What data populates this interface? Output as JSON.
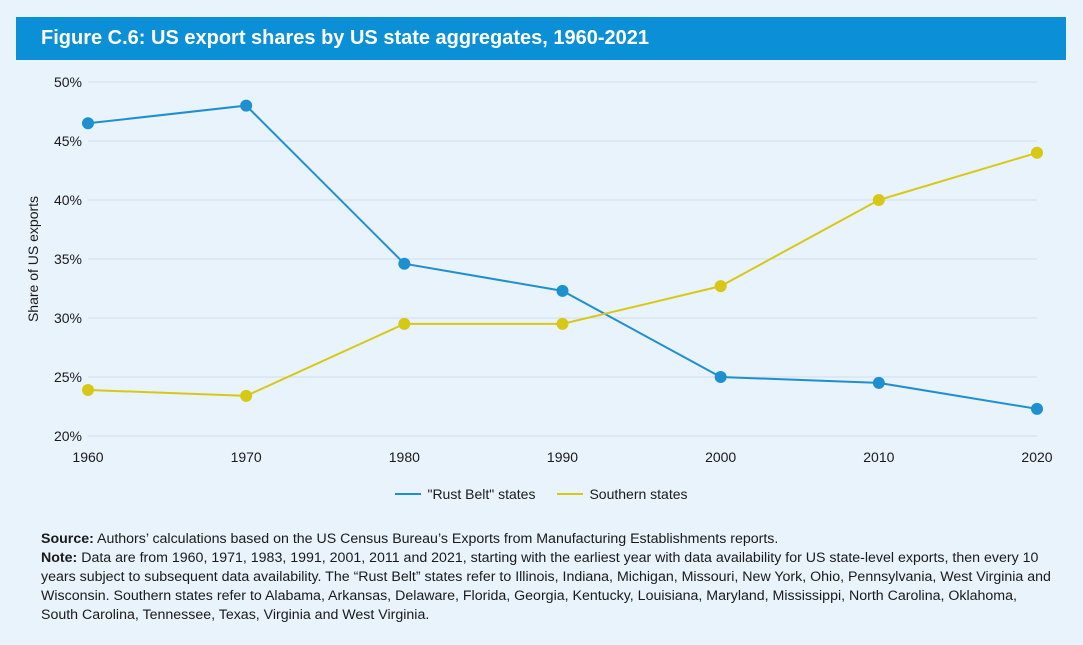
{
  "title": "Figure C.6: US export shares by US state aggregates, 1960-2021",
  "colors": {
    "rust_belt": "#1e90cf",
    "southern": "#d8c816",
    "grid": "#d4dee8",
    "title_bg": "#0b8fd6"
  },
  "chart_data": {
    "type": "line",
    "x": [
      1960,
      1970,
      1980,
      1990,
      2000,
      2010,
      2020
    ],
    "ylabel": "Share of US exports",
    "xlabel": "",
    "ylim": [
      20,
      50
    ],
    "yticks": [
      20,
      25,
      30,
      35,
      40,
      45,
      50
    ],
    "ytick_labels": [
      "20%",
      "25%",
      "30%",
      "35%",
      "40%",
      "45%",
      "50%"
    ],
    "xtick_labels": [
      "1960",
      "1970",
      "1980",
      "1990",
      "2000",
      "2010",
      "2020"
    ],
    "grid": true,
    "legend_position": "bottom",
    "series": [
      {
        "name": "\"Rust Belt\" states",
        "color_key": "rust_belt",
        "values": [
          46.5,
          48.0,
          34.6,
          32.3,
          25.0,
          24.5,
          22.3
        ]
      },
      {
        "name": "Southern states",
        "color_key": "southern",
        "values": [
          23.9,
          23.4,
          29.5,
          29.5,
          32.7,
          40.0,
          44.0
        ]
      }
    ]
  },
  "footer": {
    "source_label": "Source:",
    "source_text": " Authors’ calculations based on the US Census Bureau’s Exports from Manufacturing Establishments reports.",
    "note_label": "Note:",
    "note_text": " Data are from 1960, 1971, 1983, 1991, 2001, 2011 and 2021, starting with the earliest year with data availability for US state-level exports, then every 10 years subject to subsequent data availability. The “Rust Belt” states refer to Illinois, Indiana, Michigan, Missouri, New York, Ohio, Pennsylvania, West Virginia and Wisconsin. Southern states refer to Alabama, Arkansas, Delaware, Florida, Georgia, Kentucky, Louisiana, Maryland, Mississippi, North Carolina, Oklahoma, South Carolina, Tennessee, Texas, Virginia and West Virginia."
  }
}
